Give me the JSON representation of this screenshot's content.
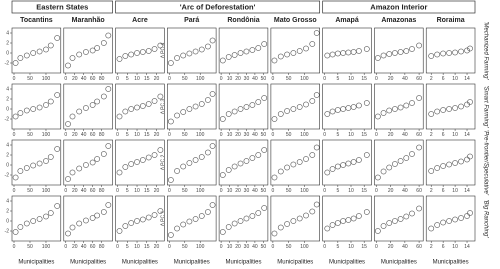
{
  "chart_data": {
    "type": "scatter_matrix",
    "x_label": "Municipalities",
    "ylim": [
      -4,
      5
    ],
    "yticks": [
      -2,
      0,
      2,
      4
    ],
    "color": "#555555",
    "rows": [
      {
        "name": "'Mechanized Farming'",
        "y_label": "Δ PC 4"
      },
      {
        "name": "'Smart Farming'",
        "y_label": "Δ PC 3"
      },
      {
        "name": "'Pre-frontier/Speculative'",
        "y_label": "Δ PC 2"
      },
      {
        "name": "'Big Ranching'",
        "y_label": "Δ PC 1"
      }
    ],
    "groups": [
      {
        "name": "Eastern States",
        "columns": [
          {
            "name": "Tocantins",
            "xlim": [
              0,
              140
            ],
            "xticks": [
              0,
              50,
              100
            ],
            "x": [
              5,
              20,
              40,
              60,
              80,
              100,
              115,
              135
            ],
            "panels": [
              [
                -2,
                -1,
                -0.5,
                0,
                0.3,
                0.7,
                1.5,
                3
              ],
              [
                -1.5,
                -0.8,
                -0.3,
                0,
                0.3,
                0.8,
                1.5,
                2.8
              ],
              [
                -2.5,
                -1.2,
                -0.6,
                -0.1,
                0.3,
                0.8,
                1.6,
                3.2
              ],
              [
                -2.2,
                -1.2,
                -0.5,
                0,
                0.4,
                0.9,
                1.6,
                3
              ]
            ]
          },
          {
            "name": "Maranhão",
            "xlim": [
              0,
              100
            ],
            "xticks": [
              0,
              20,
              40,
              60,
              80
            ],
            "x": [
              5,
              15,
              30,
              45,
              60,
              70,
              85,
              95
            ],
            "panels": [
              [
                -2.5,
                -1,
                -0.3,
                0.2,
                0.5,
                1,
                2,
                3.5
              ],
              [
                -3,
                -1.5,
                -0.5,
                0.2,
                0.8,
                1.5,
                2.5,
                4
              ],
              [
                -2.8,
                -1.5,
                -0.7,
                0,
                0.5,
                1.2,
                2.2,
                3.8
              ],
              [
                -2.5,
                -1.3,
                -0.5,
                0.1,
                0.6,
                1.1,
                1.8,
                3.2
              ]
            ]
          }
        ]
      },
      {
        "name": "'Arc of Deforestation'",
        "columns": [
          {
            "name": "Acre",
            "xlim": [
              0,
              23
            ],
            "xticks": [
              0,
              5,
              10,
              15,
              20
            ],
            "x": [
              1,
              4,
              7,
              10,
              13,
              16,
              19,
              22
            ],
            "panels": [
              [
                -1.2,
                -0.6,
                -0.3,
                0,
                0.2,
                0.4,
                0.8,
                1.5
              ],
              [
                -1.5,
                -0.5,
                0,
                0.3,
                0.6,
                1,
                1.6,
                2.5
              ],
              [
                -1.5,
                -0.4,
                0.2,
                0.6,
                1,
                1.5,
                2,
                3
              ],
              [
                -2,
                -1,
                -0.4,
                0,
                0.3,
                0.7,
                1.2,
                2
              ]
            ]
          },
          {
            "name": "Pará",
            "xlim": [
              0,
              145
            ],
            "xticks": [
              0,
              50,
              100
            ],
            "x": [
              5,
              25,
              45,
              65,
              85,
              105,
              125,
              140
            ],
            "panels": [
              [
                -2,
                -1,
                -0.5,
                -0.1,
                0.3,
                0.7,
                1.3,
                2.5
              ],
              [
                -2.5,
                -1.3,
                -0.6,
                0,
                0.5,
                1,
                1.8,
                3
              ],
              [
                -3,
                -1.2,
                -0.3,
                0.4,
                1,
                1.6,
                2.5,
                3.8
              ],
              [
                -2.8,
                -1.5,
                -0.7,
                -0.1,
                0.4,
                1,
                1.8,
                3.2
              ]
            ]
          },
          {
            "name": "Rondônia",
            "xlim": [
              0,
              53
            ],
            "xticks": [
              0,
              10,
              20,
              30,
              40,
              50
            ],
            "x": [
              2,
              9,
              16,
              23,
              30,
              37,
              44,
              51
            ],
            "panels": [
              [
                -1.5,
                -0.8,
                -0.4,
                0,
                0.3,
                0.6,
                1,
                1.8
              ],
              [
                -2,
                -1,
                -0.5,
                0,
                0.4,
                0.8,
                1.4,
                2.2
              ],
              [
                -2,
                -1,
                -0.3,
                0.3,
                0.8,
                1.4,
                2,
                3
              ],
              [
                -2.2,
                -1.2,
                -0.5,
                0,
                0.5,
                1,
                1.6,
                2.6
              ]
            ]
          },
          {
            "name": "Mato Grosso",
            "xlim": [
              0,
              142
            ],
            "xticks": [
              0,
              50,
              100
            ],
            "x": [
              5,
              25,
              45,
              65,
              85,
              105,
              125,
              139
            ],
            "panels": [
              [
                -1.5,
                -0.7,
                -0.3,
                0,
                0.4,
                0.9,
                1.8,
                4
              ],
              [
                -2,
                -1,
                -0.4,
                0,
                0.4,
                0.9,
                1.6,
                2.8
              ],
              [
                -2.5,
                -1.3,
                -0.5,
                0.1,
                0.6,
                1.2,
                2,
                3.5
              ],
              [
                -2.5,
                -1.3,
                -0.6,
                0,
                0.5,
                1.1,
                1.9,
                3.3
              ]
            ]
          }
        ]
      },
      {
        "name": "Amazon Interior",
        "columns": [
          {
            "name": "Amapá",
            "xlim": [
              0,
              17
            ],
            "xticks": [
              0,
              5,
              10,
              15
            ],
            "x": [
              1,
              3,
              5,
              7,
              9,
              11,
              13,
              16
            ],
            "panels": [
              [
                -0.5,
                -0.3,
                -0.1,
                0,
                0.1,
                0.2,
                0.4,
                0.8
              ],
              [
                -1,
                -0.5,
                -0.2,
                0,
                0.2,
                0.4,
                0.7,
                1.2
              ],
              [
                -1.5,
                -0.8,
                -0.3,
                0,
                0.3,
                0.6,
                1,
                2
              ],
              [
                -1.5,
                -0.8,
                -0.4,
                0,
                0.2,
                0.5,
                1,
                1.8
              ]
            ]
          },
          {
            "name": "Amazonas",
            "xlim": [
              0,
              63
            ],
            "xticks": [
              0,
              20,
              40,
              60
            ],
            "x": [
              2,
              10,
              18,
              26,
              34,
              42,
              50,
              60
            ],
            "panels": [
              [
                -1,
                -0.5,
                -0.2,
                0,
                0.2,
                0.4,
                0.8,
                1.5
              ],
              [
                -1.5,
                -0.8,
                -0.3,
                0,
                0.3,
                0.7,
                1.2,
                2.2
              ],
              [
                -2.5,
                -1.3,
                -0.5,
                0.2,
                0.8,
                1.4,
                2.2,
                3.5
              ],
              [
                -2,
                -1,
                -0.4,
                0,
                0.4,
                0.9,
                1.5,
                2.5
              ]
            ]
          },
          {
            "name": "Roraima",
            "xlim": [
              1,
              16
            ],
            "xticks": [
              2,
              6,
              10,
              14
            ],
            "x": [
              2,
              4,
              6,
              8,
              10,
              12,
              14,
              15
            ],
            "panels": [
              [
                -0.6,
                -0.3,
                -0.1,
                0,
                0.1,
                0.3,
                0.5,
                0.9
              ],
              [
                -1,
                -0.5,
                -0.2,
                0,
                0.2,
                0.5,
                0.9,
                1.4
              ],
              [
                -1.2,
                -0.6,
                -0.2,
                0.1,
                0.4,
                0.7,
                1.1,
                1.7
              ],
              [
                -1.5,
                -0.8,
                -0.3,
                0,
                0.3,
                0.6,
                1,
                1.6
              ]
            ]
          }
        ]
      }
    ]
  }
}
